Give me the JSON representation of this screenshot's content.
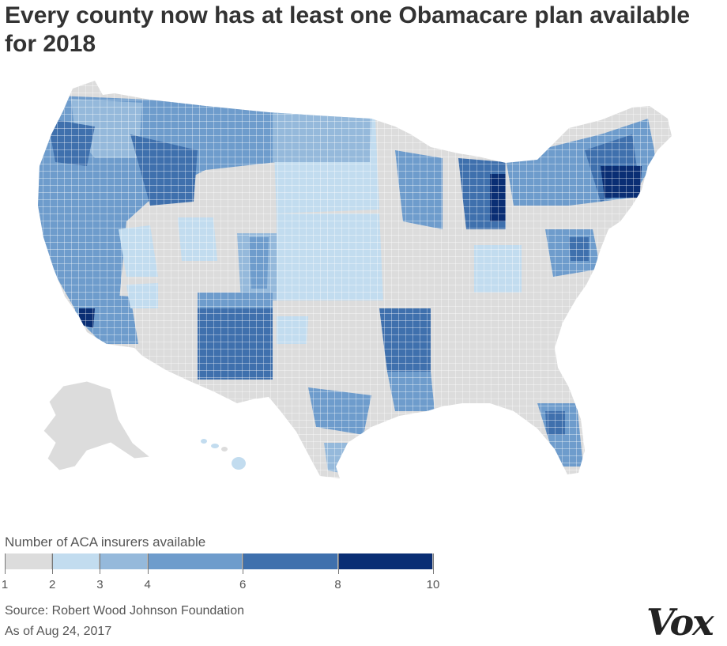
{
  "title": "Every county now has at least one Obamacare plan available for 2018",
  "legend": {
    "title": "Number of ACA insurers available",
    "bins": [
      {
        "from": 1,
        "to": 2,
        "color": "#dcdcdc"
      },
      {
        "from": 2,
        "to": 3,
        "color": "#c2dcef"
      },
      {
        "from": 3,
        "to": 4,
        "color": "#95b9db"
      },
      {
        "from": 4,
        "to": 6,
        "color": "#6e9ccc"
      },
      {
        "from": 6,
        "to": 8,
        "color": "#3f70ad"
      },
      {
        "from": 8,
        "to": 10,
        "color": "#0a2e74"
      }
    ],
    "tick_labels": [
      "1",
      "2",
      "3",
      "4",
      "6",
      "8",
      "10"
    ]
  },
  "source": "Source: Robert Wood Johnson Foundation",
  "as_of": "As of Aug 24, 2017",
  "logo_text": "Vox",
  "colors": {
    "background": "#ffffff",
    "county_border": "#ffffff",
    "land_default": "#dcdcdc"
  }
}
